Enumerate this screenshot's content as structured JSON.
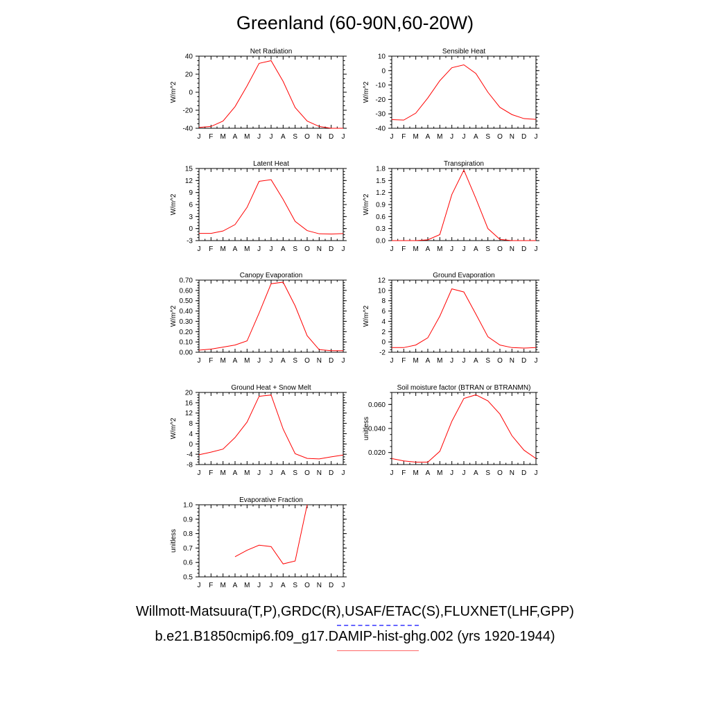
{
  "title": "Greenland (60-90N,60-20W)",
  "legend": {
    "obs": "Willmott-Matsuura(T,P),GRDC(R),USAF/ETAC(S),FLUXNET(LHF,GPP)",
    "model": "b.e21.B1850cmip6.f09_g17.DAMIP-hist-ghg.002 (yrs 1920-1944)",
    "obs_color": "#6666ff",
    "model_color": "#ff0000"
  },
  "chart_data": [
    {
      "type": "line",
      "title": "Net Radiation",
      "ylabel": "W/m^2",
      "categories": [
        "J",
        "F",
        "M",
        "A",
        "M",
        "J",
        "J",
        "A",
        "S",
        "O",
        "N",
        "D",
        "J"
      ],
      "ylim": [
        -40,
        40
      ],
      "yticks": [
        "-40",
        "-20",
        "0",
        "20",
        "40"
      ],
      "series": [
        {
          "values": [
            -39,
            -38,
            -32,
            -16,
            7,
            32,
            35,
            12,
            -17,
            -32,
            -38,
            -40,
            -40
          ]
        }
      ]
    },
    {
      "type": "line",
      "title": "Sensible Heat",
      "ylabel": "W/m^2",
      "categories": [
        "J",
        "F",
        "M",
        "A",
        "M",
        "J",
        "J",
        "A",
        "S",
        "O",
        "N",
        "D",
        "J"
      ],
      "ylim": [
        -40,
        10
      ],
      "yticks": [
        "-40",
        "-30",
        "-20",
        "-10",
        "0",
        "10"
      ],
      "series": [
        {
          "values": [
            -34,
            -34.3,
            -29.5,
            -19,
            -7,
            2,
            4,
            -2,
            -15,
            -25.5,
            -30.5,
            -33.3,
            -33.8
          ]
        }
      ]
    },
    {
      "type": "line",
      "title": "Latent Heat",
      "ylabel": "W/m^2",
      "categories": [
        "J",
        "F",
        "M",
        "A",
        "M",
        "J",
        "J",
        "A",
        "S",
        "O",
        "N",
        "D",
        "J"
      ],
      "ylim": [
        -3,
        15
      ],
      "yticks": [
        "-3",
        "0",
        "3",
        "6",
        "9",
        "12",
        "15"
      ],
      "series": [
        {
          "values": [
            -1.2,
            -1.2,
            -0.6,
            1,
            5.3,
            11.8,
            12.2,
            7.3,
            1.8,
            -0.5,
            -1.3,
            -1.35,
            -1.25
          ]
        }
      ]
    },
    {
      "type": "line",
      "title": "Transpiration",
      "ylabel": "W/m^2",
      "categories": [
        "J",
        "F",
        "M",
        "A",
        "M",
        "J",
        "J",
        "A",
        "S",
        "O",
        "N",
        "D",
        "J"
      ],
      "ylim": [
        0,
        1.8
      ],
      "yticks": [
        "0.0",
        "0.3",
        "0.6",
        "0.9",
        "1.2",
        "1.5",
        "1.8"
      ],
      "series": [
        {
          "values": [
            0,
            0,
            0,
            0.02,
            0.15,
            1.15,
            1.76,
            1.05,
            0.3,
            0.03,
            0,
            0,
            0
          ]
        }
      ]
    },
    {
      "type": "line",
      "title": "Canopy Evaporation",
      "ylabel": "W/m^2",
      "categories": [
        "J",
        "F",
        "M",
        "A",
        "M",
        "J",
        "J",
        "A",
        "S",
        "O",
        "N",
        "D",
        "J"
      ],
      "ylim": [
        0,
        0.7
      ],
      "yticks": [
        "0.00",
        "0.10",
        "0.20",
        "0.30",
        "0.40",
        "0.50",
        "0.60",
        "0.70"
      ],
      "series": [
        {
          "values": [
            0.02,
            0.03,
            0.05,
            0.07,
            0.11,
            0.38,
            0.665,
            0.68,
            0.45,
            0.16,
            0.025,
            0.015,
            0.015
          ]
        }
      ]
    },
    {
      "type": "line",
      "title": "Ground Evaporation",
      "ylabel": "W/m^2",
      "categories": [
        "J",
        "F",
        "M",
        "A",
        "M",
        "J",
        "J",
        "A",
        "S",
        "O",
        "N",
        "D",
        "J"
      ],
      "ylim": [
        -2,
        12
      ],
      "yticks": [
        "-2",
        "0",
        "2",
        "4",
        "6",
        "8",
        "10",
        "12"
      ],
      "series": [
        {
          "values": [
            -1.1,
            -1.1,
            -0.6,
            0.8,
            5,
            10.3,
            9.7,
            5.4,
            1,
            -0.6,
            -1.1,
            -1.2,
            -1.1
          ]
        }
      ]
    },
    {
      "type": "line",
      "title": "Ground Heat + Snow Melt",
      "ylabel": "W/m^2",
      "categories": [
        "J",
        "F",
        "M",
        "A",
        "M",
        "J",
        "J",
        "A",
        "S",
        "O",
        "N",
        "D",
        "J"
      ],
      "ylim": [
        -8,
        20
      ],
      "yticks": [
        "-8",
        "-4",
        "0",
        "4",
        "8",
        "12",
        "16",
        "20"
      ],
      "series": [
        {
          "values": [
            -4.2,
            -3.2,
            -2,
            2.5,
            8.5,
            18.5,
            19,
            5.8,
            -3.8,
            -5.6,
            -5.8,
            -5,
            -4.3
          ]
        }
      ]
    },
    {
      "type": "line",
      "title": "Soil moisture factor (BTRAN or BTRANMN)",
      "ylabel": "unitless",
      "categories": [
        "J",
        "F",
        "M",
        "A",
        "M",
        "J",
        "J",
        "A",
        "S",
        "O",
        "N",
        "D",
        "J"
      ],
      "ylim": [
        0.01,
        0.07
      ],
      "yticks": [
        "0.020",
        "0.040",
        "0.060"
      ],
      "yticks_values": [
        0.02,
        0.04,
        0.06
      ],
      "series": [
        {
          "values": [
            0.015,
            0.013,
            0.012,
            0.012,
            0.021,
            0.046,
            0.065,
            0.068,
            0.063,
            0.052,
            0.034,
            0.022,
            0.015
          ]
        }
      ]
    },
    {
      "type": "line",
      "title": "Evaporative Fraction",
      "ylabel": "unitless",
      "categories": [
        "J",
        "F",
        "M",
        "A",
        "M",
        "J",
        "J",
        "A",
        "S",
        "O",
        "N",
        "D",
        "J"
      ],
      "ylim": [
        0.5,
        1.0
      ],
      "yticks": [
        "0.5",
        "0.6",
        "0.7",
        "0.8",
        "0.9",
        "1.0"
      ],
      "series": [
        {
          "values": [
            null,
            null,
            null,
            0.64,
            0.685,
            0.72,
            0.71,
            0.59,
            0.61,
            1.0,
            null,
            null,
            null
          ]
        }
      ]
    }
  ]
}
